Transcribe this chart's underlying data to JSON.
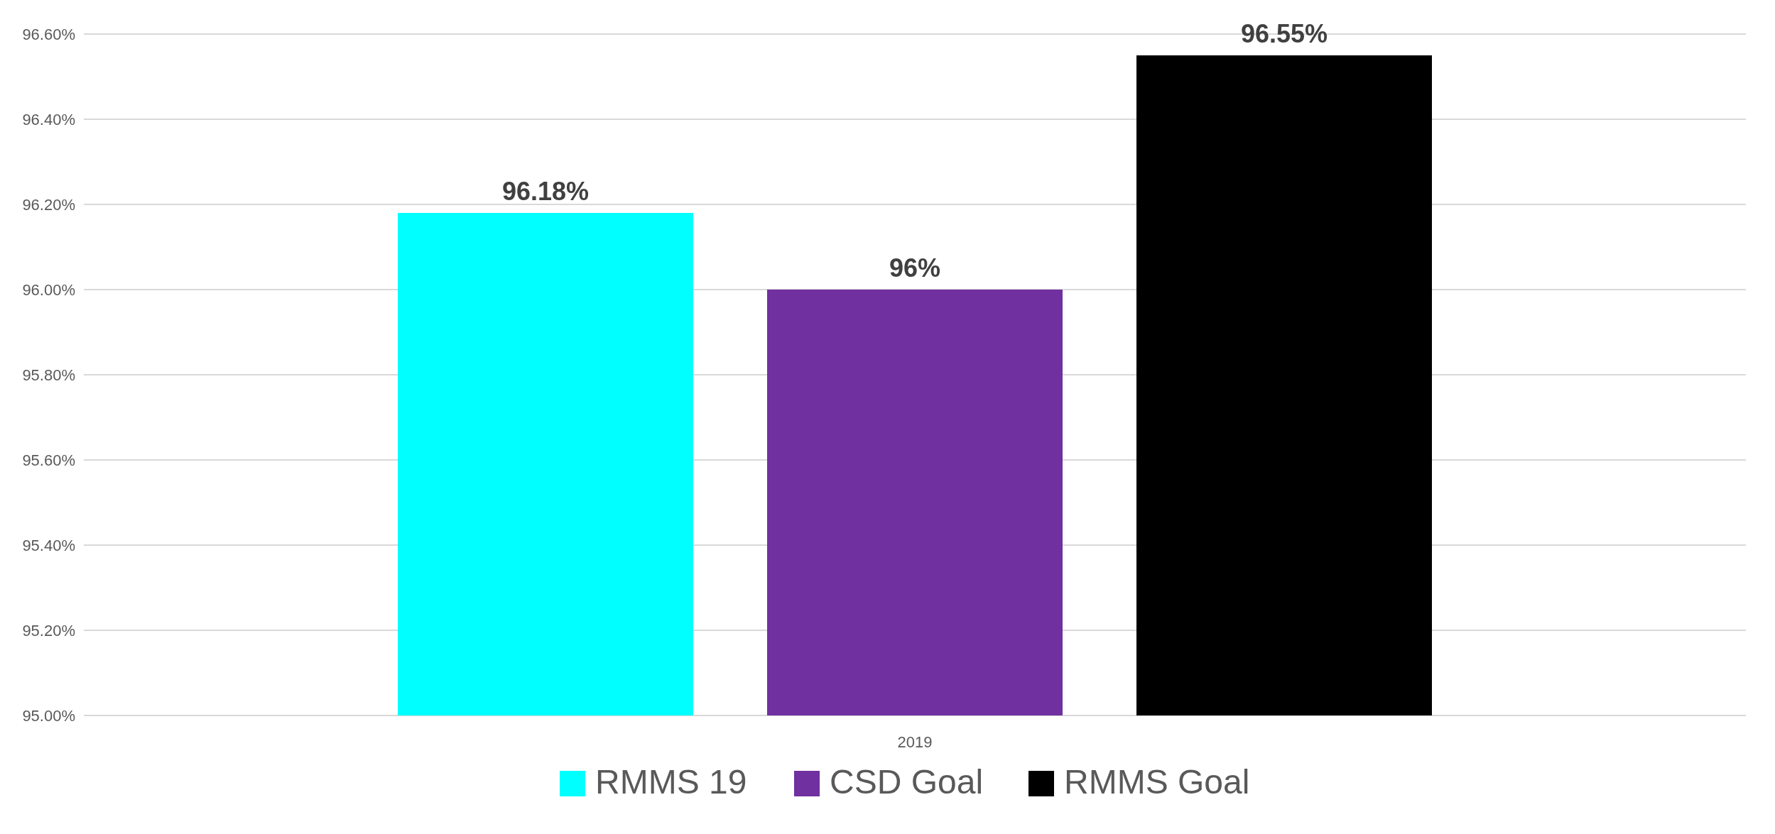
{
  "chart_data": {
    "type": "bar",
    "categories": [
      "2019"
    ],
    "series": [
      {
        "name": "RMMS 19",
        "color": "#00ffff",
        "values": [
          96.18
        ],
        "value_labels": [
          "96.18%"
        ]
      },
      {
        "name": "CSD Goal",
        "color": "#7030a0",
        "values": [
          96
        ],
        "value_labels": [
          "96%"
        ]
      },
      {
        "name": "RMMS Goal",
        "color": "#000000",
        "values": [
          96.55
        ],
        "value_labels": [
          "96.55%"
        ]
      }
    ],
    "ylim": [
      95,
      96.6
    ],
    "yticks": [
      {
        "value": 95,
        "label": "95.00%"
      },
      {
        "value": 95.2,
        "label": "95.20%"
      },
      {
        "value": 95.4,
        "label": "95.40%"
      },
      {
        "value": 95.6,
        "label": "95.60%"
      },
      {
        "value": 95.8,
        "label": "95.80%"
      },
      {
        "value": 96,
        "label": "96.00%"
      },
      {
        "value": 96.2,
        "label": "96.20%"
      },
      {
        "value": 96.4,
        "label": "96.40%"
      },
      {
        "value": 96.6,
        "label": "96.60%"
      }
    ],
    "grid": "y",
    "legend": "bottom"
  }
}
